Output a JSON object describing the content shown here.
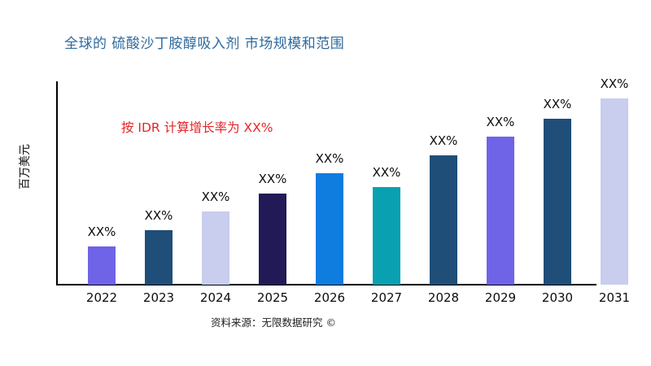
{
  "title": "全球的 硫酸沙丁胺醇吸入剂 市场规模和范围",
  "annotation": "按 IDR 计算增长率为 XX%",
  "y_axis_label": "百万美元",
  "source": "资料来源：无限数据研究 ©",
  "colors": {
    "title_text": "#2e6a9e",
    "annotation_text": "#e62428",
    "axis": "#000000",
    "background": "#ffffff"
  },
  "chart_data": {
    "type": "bar",
    "title": "全球的 硫酸沙丁胺醇吸入剂 市场规模和范围",
    "xlabel": "",
    "ylabel": "百万美元",
    "categories": [
      "2022",
      "2023",
      "2024",
      "2025",
      "2026",
      "2027",
      "2028",
      "2029",
      "2030",
      "2031"
    ],
    "values": [
      19,
      27,
      36,
      45,
      55,
      48,
      64,
      73,
      82,
      92
    ],
    "values_note": "estimated relative bar heights in % of plot height; actual values masked as XX% in the figure",
    "bar_labels": [
      "XX%",
      "XX%",
      "XX%",
      "XX%",
      "XX%",
      "XX%",
      "XX%",
      "XX%",
      "XX%",
      "XX%"
    ],
    "bar_colors": [
      "#6f63e8",
      "#1f4e79",
      "#c9cdee",
      "#211a57",
      "#0f7ce0",
      "#09a1b1",
      "#1f4e79",
      "#6f63e8",
      "#1f4e79",
      "#c9cdee"
    ],
    "ylim": [
      0,
      100
    ],
    "grid": false,
    "legend": false
  }
}
